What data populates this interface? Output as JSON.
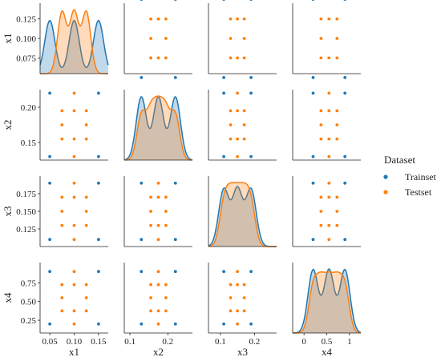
{
  "colors": {
    "trainset": "#1f77b4",
    "testset": "#ff7f0e"
  },
  "chart_data": {
    "type": "scatter",
    "kind": "pairplot",
    "diagonal": "kde",
    "variables": [
      "x1",
      "x2",
      "x3",
      "x4"
    ],
    "legend": {
      "title": "Dataset",
      "position": "right",
      "entries": [
        "Trainset",
        "Testset"
      ]
    },
    "axes": {
      "x1": {
        "range": [
          0.03,
          0.17
        ],
        "ticks": [
          0.05,
          0.1,
          0.15
        ],
        "tick_labels": [
          "0.05",
          "0.10",
          "0.15"
        ],
        "y_range": [
          0.055,
          0.145
        ],
        "y_ticks": [
          0.075,
          0.1,
          0.125
        ],
        "y_tick_labels": [
          "0.075",
          "0.100",
          "0.125"
        ]
      },
      "x2": {
        "range": [
          0.085,
          0.265
        ],
        "ticks": [
          0.1,
          0.2
        ],
        "tick_labels": [
          "0.1",
          "0.2"
        ],
        "y_range": [
          0.125,
          0.225
        ],
        "y_ticks": [
          0.15,
          0.2
        ],
        "y_tick_labels": [
          "0.15",
          "0.20"
        ]
      },
      "x3": {
        "range": [
          0.065,
          0.265
        ],
        "ticks": [
          0.1,
          0.2
        ],
        "tick_labels": [
          "0.1",
          "0.2"
        ],
        "y_range": [
          0.1,
          0.2
        ],
        "y_ticks": [
          0.125,
          0.15,
          0.175
        ],
        "y_tick_labels": [
          "0.125",
          "0.150",
          "0.175"
        ]
      },
      "x4": {
        "range": [
          -0.25,
          1.25
        ],
        "ticks": [
          0,
          0.5,
          1
        ],
        "tick_labels": [
          "0",
          "0.5",
          "1"
        ],
        "y_range": [
          0.08,
          1.02
        ],
        "y_ticks": [
          0.25,
          0.5,
          0.75
        ],
        "y_tick_labels": [
          "0.25",
          "0.50",
          "0.75"
        ]
      }
    },
    "series": [
      {
        "name": "Trainset",
        "values": {
          "x1": [
            0.05,
            0.1,
            0.15
          ],
          "x2": [
            0.13,
            0.175,
            0.22
          ],
          "x3": [
            0.11,
            0.15,
            0.19
          ],
          "x4": [
            0.2,
            0.55,
            0.9
          ]
        }
      },
      {
        "name": "Testset",
        "values": {
          "x1": [
            0.075,
            0.1,
            0.125
          ],
          "x2": [
            0.13,
            0.155,
            0.175,
            0.195,
            0.22
          ],
          "x3": [
            0.11,
            0.13,
            0.15,
            0.17,
            0.19
          ],
          "x4": [
            0.2,
            0.375,
            0.55,
            0.725,
            0.9
          ]
        }
      }
    ]
  }
}
